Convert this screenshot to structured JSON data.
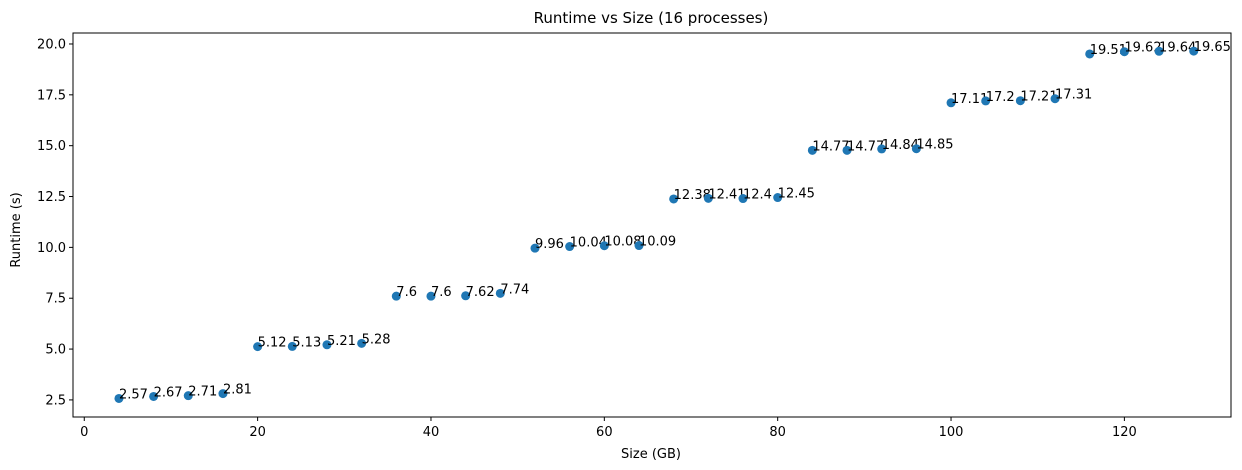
{
  "chart_data": {
    "type": "scatter",
    "title": "Runtime vs Size (16 processes)",
    "xlabel": "Size (GB)",
    "ylabel": "Runtime (s)",
    "xlim": [
      -1.3,
      132.3
    ],
    "ylim": [
      1.66,
      20.54
    ],
    "xticks": [
      0,
      20,
      40,
      60,
      80,
      100,
      120
    ],
    "yticks": [
      2.5,
      5.0,
      7.5,
      10.0,
      12.5,
      15.0,
      17.5,
      20.0
    ],
    "xtick_labels": [
      "0",
      "20",
      "40",
      "60",
      "80",
      "100",
      "120"
    ],
    "ytick_labels": [
      "2.5",
      "5.0",
      "7.5",
      "10.0",
      "12.5",
      "15.0",
      "17.5",
      "20.0"
    ],
    "grid": false,
    "color": "#1f77b4",
    "x": [
      4,
      8,
      12,
      16,
      20,
      24,
      28,
      32,
      36,
      40,
      44,
      48,
      52,
      56,
      60,
      64,
      68,
      72,
      76,
      80,
      84,
      88,
      92,
      96,
      100,
      104,
      108,
      112,
      116,
      120,
      124,
      128
    ],
    "y": [
      2.57,
      2.67,
      2.71,
      2.81,
      5.12,
      5.13,
      5.21,
      5.28,
      7.6,
      7.6,
      7.62,
      7.74,
      9.96,
      10.04,
      10.08,
      10.09,
      12.38,
      12.41,
      12.4,
      12.45,
      14.77,
      14.77,
      14.84,
      14.85,
      17.11,
      17.2,
      17.21,
      17.31,
      19.51,
      19.62,
      19.64,
      19.65
    ],
    "labels": [
      "2.57",
      "2.67",
      "2.71",
      "2.81",
      "5.12",
      "5.13",
      "5.21",
      "5.28",
      "7.6",
      "7.6",
      "7.62",
      "7.74",
      "9.96",
      "10.04",
      "10.08",
      "10.09",
      "12.38",
      "12.41",
      "12.4",
      "12.45",
      "14.77",
      "14.77",
      "14.84",
      "14.85",
      "17.11",
      "17.2",
      "17.21",
      "17.31",
      "19.51",
      "19.62",
      "19.64",
      "19.65"
    ]
  }
}
